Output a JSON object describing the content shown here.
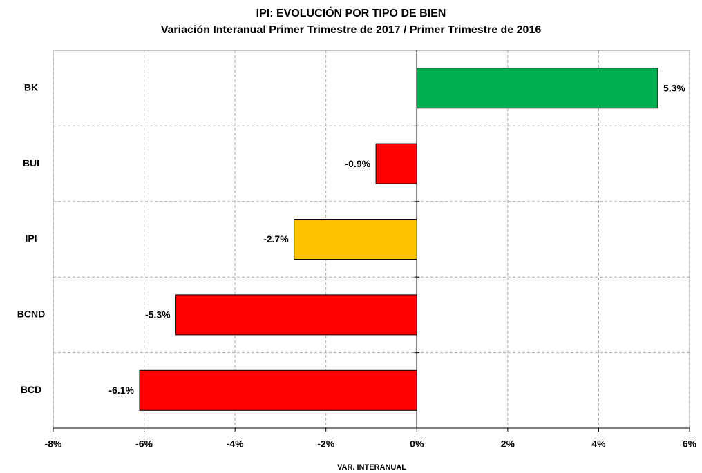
{
  "chart_data": {
    "type": "hbar",
    "title": "IPI: EVOLUCIÓN POR TIPO DE BIEN",
    "subtitle": "Variación Interanual Primer Trimestre de 2017 /  Primer Trimestre de 2016",
    "x_label": "VAR. INTERANUAL",
    "categories": [
      "BK",
      "BUI",
      "IPI",
      "BCND",
      "BCD"
    ],
    "values": [
      5.3,
      -0.9,
      -2.7,
      -5.3,
      -6.1
    ],
    "value_labels": [
      "5.3%",
      "-0.9%",
      "-2.7%",
      "-5.3%",
      "-6.1%"
    ],
    "colors": [
      "#00b050",
      "#ff0000",
      "#ffc000",
      "#ff0000",
      "#ff0000"
    ],
    "xlim": [
      -8,
      6
    ],
    "xticks": [
      {
        "value": -8,
        "label": "-8%"
      },
      {
        "value": -6,
        "label": "-6%"
      },
      {
        "value": -4,
        "label": "-4%"
      },
      {
        "value": -2,
        "label": "-2%"
      },
      {
        "value": 0,
        "label": "0%"
      },
      {
        "value": 2,
        "label": "2%"
      },
      {
        "value": 4,
        "label": "4%"
      },
      {
        "value": 6,
        "label": "6%"
      }
    ],
    "grid": true
  }
}
